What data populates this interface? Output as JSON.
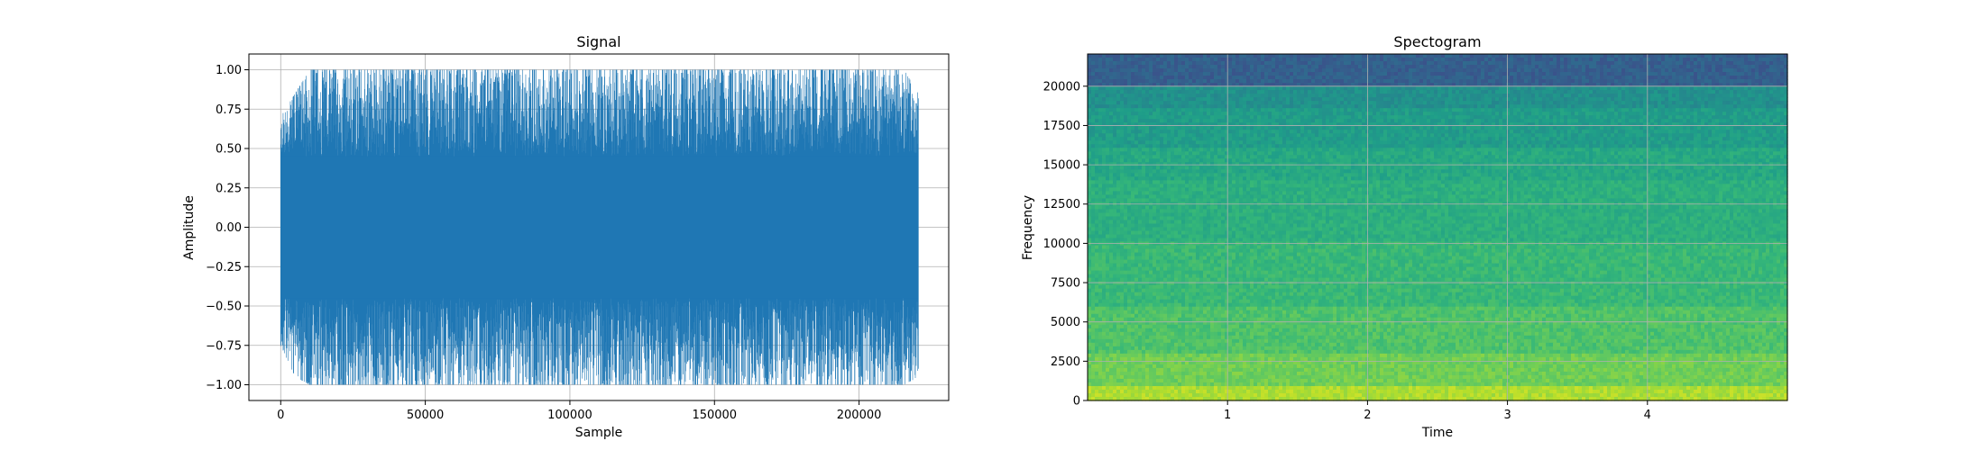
{
  "chart_data": [
    {
      "type": "line",
      "title": "Signal",
      "xlabel": "Sample",
      "ylabel": "Amplitude",
      "xlim": [
        -11000,
        231000
      ],
      "ylim": [
        -1.1,
        1.1
      ],
      "xticks": [
        0,
        50000,
        100000,
        150000,
        200000
      ],
      "xtick_labels": [
        "0",
        "50000",
        "100000",
        "150000",
        "200000"
      ],
      "yticks": [
        1.0,
        0.75,
        0.5,
        0.25,
        0.0,
        -0.25,
        -0.5,
        -0.75,
        -1.0
      ],
      "ytick_labels": [
        "1.00",
        "0.75",
        "0.50",
        "0.25",
        "0.00",
        "−0.25",
        "−0.50",
        "−0.75",
        "−1.00"
      ],
      "grid": true,
      "series": [
        {
          "color": "#1f77b4",
          "sample_range": [
            0,
            220500
          ],
          "envelope_max": [
            0.7,
            0.85,
            1.0,
            1.0,
            1.0,
            1.0,
            1.0,
            1.0,
            1.0,
            1.0,
            1.0,
            1.0,
            1.0,
            1.0,
            1.0,
            1.0,
            1.0,
            1.0,
            1.0,
            1.0,
            1.0,
            1.0,
            1.0,
            1.0,
            1.0,
            1.0,
            1.0,
            1.0,
            1.0,
            1.0,
            1.0,
            1.0,
            1.0,
            1.0,
            1.0,
            1.0,
            1.0,
            1.0,
            1.0,
            1.0,
            1.0,
            1.0,
            1.0,
            1.0,
            0.85
          ],
          "envelope_min": [
            -0.75,
            -0.95,
            -1.0,
            -1.0,
            -1.0,
            -1.0,
            -1.0,
            -1.0,
            -1.0,
            -1.0,
            -1.0,
            -1.0,
            -1.0,
            -1.0,
            -1.0,
            -1.0,
            -1.0,
            -1.0,
            -1.0,
            -1.0,
            -1.0,
            -1.0,
            -1.0,
            -1.0,
            -1.0,
            -1.0,
            -1.0,
            -1.0,
            -1.0,
            -1.0,
            -1.0,
            -1.0,
            -1.0,
            -1.0,
            -1.0,
            -1.0,
            -1.0,
            -1.0,
            -1.0,
            -1.0,
            -1.0,
            -1.0,
            -1.0,
            -1.0,
            -0.95
          ],
          "core_amplitude": 0.45
        }
      ]
    },
    {
      "type": "heatmap",
      "title": "Spectogram",
      "xlabel": "Time",
      "ylabel": "Frequency",
      "xlim": [
        0,
        5.0
      ],
      "ylim": [
        0,
        22050
      ],
      "xticks": [
        1,
        2,
        3,
        4
      ],
      "xtick_labels": [
        "1",
        "2",
        "3",
        "4"
      ],
      "yticks": [
        0,
        2500,
        5000,
        7500,
        10000,
        12500,
        15000,
        17500,
        20000
      ],
      "ytick_labels": [
        "0",
        "2500",
        "5000",
        "7500",
        "10000",
        "12500",
        "15000",
        "17500",
        "20000"
      ],
      "grid": true,
      "colormap": "viridis",
      "frequency_bands": [
        {
          "from": 0,
          "to": 1000,
          "level": 0.88
        },
        {
          "from": 1000,
          "to": 3000,
          "level": 0.78
        },
        {
          "from": 3000,
          "to": 6000,
          "level": 0.72
        },
        {
          "from": 6000,
          "to": 10000,
          "level": 0.67
        },
        {
          "from": 10000,
          "to": 14000,
          "level": 0.63
        },
        {
          "from": 14000,
          "to": 16000,
          "level": 0.6
        },
        {
          "from": 16000,
          "to": 18500,
          "level": 0.55
        },
        {
          "from": 18500,
          "to": 20000,
          "level": 0.5
        },
        {
          "from": 20000,
          "to": 22050,
          "level": 0.3
        }
      ]
    }
  ]
}
